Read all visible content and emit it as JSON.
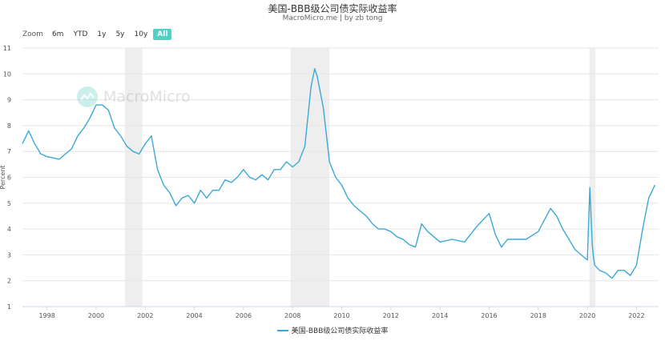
{
  "title": "美国-BBB级公司债实际收益率",
  "subtitle": "MacroMicro.me | by zb tong",
  "zoom": {
    "label": "Zoom",
    "buttons": [
      "6m",
      "YTD",
      "1y",
      "5y",
      "10y",
      "All"
    ],
    "active": "All"
  },
  "watermark": "MacroMicro",
  "colors": {
    "line": "#3aa8d8",
    "recession": "#eeeeee",
    "grid": "#e6e6e6",
    "active_zoom": "#4fd1c5"
  },
  "chart_data": {
    "type": "line",
    "title": "美国-BBB级公司债实际收益率",
    "subtitle": "MacroMicro.me | by zb tong",
    "ylabel": "Percent",
    "xlabel": "",
    "xlim": [
      1997.0,
      2022.9
    ],
    "ylim": [
      1,
      11
    ],
    "yticks": [
      1,
      2,
      3,
      4,
      5,
      6,
      7,
      8,
      9,
      10,
      11
    ],
    "xticks": [
      1998,
      2000,
      2002,
      2004,
      2006,
      2008,
      2010,
      2012,
      2014,
      2016,
      2018,
      2020,
      2022
    ],
    "grid": true,
    "legend_position": "bottom",
    "recessions": [
      [
        2001.17,
        2001.88
      ],
      [
        2007.92,
        2009.5
      ],
      [
        2020.08,
        2020.33
      ]
    ],
    "series": [
      {
        "name": "美国-BBB级公司债实际收益率",
        "x": [
          1997.0,
          1997.25,
          1997.5,
          1997.75,
          1998.0,
          1998.5,
          1998.75,
          1999.0,
          1999.25,
          1999.5,
          1999.75,
          2000.0,
          2000.25,
          2000.5,
          2000.75,
          2001.0,
          2001.25,
          2001.5,
          2001.75,
          2002.0,
          2002.25,
          2002.5,
          2002.75,
          2003.0,
          2003.25,
          2003.5,
          2003.75,
          2004.0,
          2004.25,
          2004.5,
          2004.75,
          2005.0,
          2005.25,
          2005.5,
          2005.75,
          2006.0,
          2006.25,
          2006.5,
          2006.75,
          2007.0,
          2007.25,
          2007.5,
          2007.75,
          2008.0,
          2008.25,
          2008.5,
          2008.75,
          2008.9,
          2009.0,
          2009.25,
          2009.5,
          2009.75,
          2010.0,
          2010.25,
          2010.5,
          2010.75,
          2011.0,
          2011.25,
          2011.5,
          2011.75,
          2012.0,
          2012.25,
          2012.5,
          2012.75,
          2013.0,
          2013.25,
          2013.5,
          2013.75,
          2014.0,
          2014.5,
          2015.0,
          2015.5,
          2016.0,
          2016.25,
          2016.5,
          2016.75,
          2017.0,
          2017.5,
          2018.0,
          2018.5,
          2018.75,
          2019.0,
          2019.5,
          2019.75,
          2020.0,
          2020.1,
          2020.2,
          2020.25,
          2020.3,
          2020.5,
          2020.75,
          2021.0,
          2021.25,
          2021.5,
          2021.75,
          2022.0,
          2022.25,
          2022.5,
          2022.75
        ],
        "values": [
          7.3,
          7.8,
          7.3,
          6.9,
          6.8,
          6.7,
          6.9,
          7.1,
          7.6,
          7.9,
          8.3,
          8.8,
          8.8,
          8.6,
          7.9,
          7.6,
          7.2,
          7.0,
          6.9,
          7.3,
          7.6,
          6.3,
          5.7,
          5.4,
          4.9,
          5.2,
          5.3,
          5.0,
          5.5,
          5.2,
          5.5,
          5.5,
          5.9,
          5.8,
          6.0,
          6.3,
          6.0,
          5.9,
          6.1,
          5.9,
          6.3,
          6.3,
          6.6,
          6.4,
          6.6,
          7.2,
          9.5,
          10.2,
          9.9,
          8.7,
          6.6,
          6.0,
          5.7,
          5.2,
          4.9,
          4.7,
          4.5,
          4.2,
          4.0,
          4.0,
          3.9,
          3.7,
          3.6,
          3.4,
          3.3,
          4.2,
          3.9,
          3.7,
          3.5,
          3.6,
          3.5,
          4.1,
          4.6,
          3.8,
          3.3,
          3.6,
          3.6,
          3.6,
          3.9,
          4.8,
          4.5,
          4.0,
          3.2,
          3.0,
          2.8,
          5.6,
          3.4,
          2.9,
          2.6,
          2.4,
          2.3,
          2.1,
          2.4,
          2.4,
          2.2,
          2.6,
          4.0,
          5.2,
          5.7
        ]
      }
    ]
  }
}
